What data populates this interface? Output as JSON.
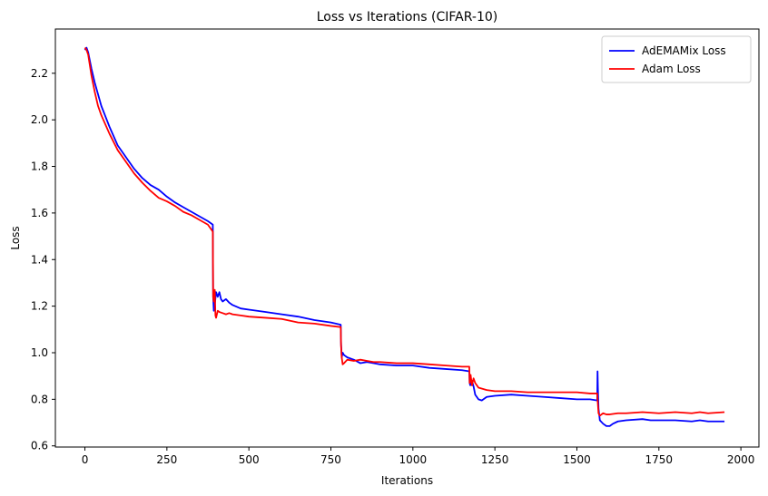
{
  "chart_data": {
    "type": "line",
    "title": "Loss vs Iterations (CIFAR-10)",
    "xlabel": "Iterations",
    "ylabel": "Loss",
    "xlim": [
      -90,
      2055
    ],
    "ylim": [
      0.595,
      2.39
    ],
    "xticks": [
      0,
      250,
      500,
      750,
      1000,
      1250,
      1500,
      1750,
      2000
    ],
    "yticks": [
      0.6,
      0.8,
      1.0,
      1.2,
      1.4,
      1.6,
      1.8,
      2.0,
      2.2
    ],
    "ytick_labels": [
      "0.6",
      "0.8",
      "1.0",
      "1.2",
      "1.4",
      "1.6",
      "1.8",
      "2.0",
      "2.2"
    ],
    "grid": false,
    "legend_position": "top-right",
    "series": [
      {
        "name": "AdEMAMix Loss",
        "color": "#0000ff",
        "points": [
          [
            0,
            2.3
          ],
          [
            5,
            2.31
          ],
          [
            10,
            2.29
          ],
          [
            20,
            2.22
          ],
          [
            30,
            2.16
          ],
          [
            40,
            2.11
          ],
          [
            50,
            2.06
          ],
          [
            75,
            1.97
          ],
          [
            100,
            1.89
          ],
          [
            125,
            1.84
          ],
          [
            150,
            1.79
          ],
          [
            175,
            1.75
          ],
          [
            200,
            1.72
          ],
          [
            225,
            1.7
          ],
          [
            250,
            1.67
          ],
          [
            275,
            1.645
          ],
          [
            300,
            1.625
          ],
          [
            325,
            1.605
          ],
          [
            350,
            1.585
          ],
          [
            375,
            1.565
          ],
          [
            390,
            1.55
          ],
          [
            391,
            1.24
          ],
          [
            393,
            1.18
          ],
          [
            397,
            1.22
          ],
          [
            400,
            1.26
          ],
          [
            405,
            1.24
          ],
          [
            410,
            1.26
          ],
          [
            415,
            1.23
          ],
          [
            420,
            1.22
          ],
          [
            430,
            1.23
          ],
          [
            440,
            1.215
          ],
          [
            450,
            1.205
          ],
          [
            475,
            1.19
          ],
          [
            500,
            1.185
          ],
          [
            550,
            1.175
          ],
          [
            600,
            1.165
          ],
          [
            650,
            1.155
          ],
          [
            700,
            1.14
          ],
          [
            750,
            1.13
          ],
          [
            780,
            1.12
          ],
          [
            781,
            1.04
          ],
          [
            783,
            0.98
          ],
          [
            786,
            1.0
          ],
          [
            790,
            0.99
          ],
          [
            800,
            0.98
          ],
          [
            820,
            0.97
          ],
          [
            840,
            0.955
          ],
          [
            860,
            0.96
          ],
          [
            880,
            0.955
          ],
          [
            900,
            0.95
          ],
          [
            950,
            0.945
          ],
          [
            1000,
            0.945
          ],
          [
            1050,
            0.935
          ],
          [
            1100,
            0.93
          ],
          [
            1150,
            0.925
          ],
          [
            1172,
            0.92
          ],
          [
            1173,
            0.87
          ],
          [
            1175,
            0.86
          ],
          [
            1180,
            0.88
          ],
          [
            1185,
            0.855
          ],
          [
            1190,
            0.82
          ],
          [
            1200,
            0.8
          ],
          [
            1210,
            0.795
          ],
          [
            1225,
            0.81
          ],
          [
            1250,
            0.815
          ],
          [
            1300,
            0.82
          ],
          [
            1350,
            0.815
          ],
          [
            1400,
            0.81
          ],
          [
            1450,
            0.805
          ],
          [
            1500,
            0.8
          ],
          [
            1540,
            0.8
          ],
          [
            1562,
            0.795
          ],
          [
            1563,
            0.92
          ],
          [
            1564,
            0.85
          ],
          [
            1566,
            0.76
          ],
          [
            1570,
            0.71
          ],
          [
            1580,
            0.695
          ],
          [
            1590,
            0.685
          ],
          [
            1600,
            0.685
          ],
          [
            1610,
            0.695
          ],
          [
            1625,
            0.705
          ],
          [
            1650,
            0.71
          ],
          [
            1700,
            0.715
          ],
          [
            1725,
            0.71
          ],
          [
            1750,
            0.71
          ],
          [
            1800,
            0.71
          ],
          [
            1850,
            0.705
          ],
          [
            1875,
            0.71
          ],
          [
            1900,
            0.705
          ],
          [
            1950,
            0.705
          ]
        ]
      },
      {
        "name": "Adam Loss",
        "color": "#ff0000",
        "points": [
          [
            0,
            2.31
          ],
          [
            5,
            2.3
          ],
          [
            10,
            2.28
          ],
          [
            20,
            2.19
          ],
          [
            30,
            2.12
          ],
          [
            40,
            2.06
          ],
          [
            50,
            2.02
          ],
          [
            75,
            1.94
          ],
          [
            100,
            1.87
          ],
          [
            125,
            1.82
          ],
          [
            150,
            1.77
          ],
          [
            175,
            1.73
          ],
          [
            200,
            1.695
          ],
          [
            225,
            1.665
          ],
          [
            250,
            1.65
          ],
          [
            275,
            1.63
          ],
          [
            300,
            1.605
          ],
          [
            325,
            1.59
          ],
          [
            350,
            1.57
          ],
          [
            375,
            1.55
          ],
          [
            390,
            1.52
          ],
          [
            391,
            1.24
          ],
          [
            393,
            1.22
          ],
          [
            396,
            1.27
          ],
          [
            398,
            1.16
          ],
          [
            400,
            1.15
          ],
          [
            405,
            1.18
          ],
          [
            410,
            1.175
          ],
          [
            420,
            1.17
          ],
          [
            430,
            1.165
          ],
          [
            440,
            1.17
          ],
          [
            450,
            1.165
          ],
          [
            475,
            1.16
          ],
          [
            500,
            1.155
          ],
          [
            550,
            1.15
          ],
          [
            600,
            1.145
          ],
          [
            650,
            1.13
          ],
          [
            700,
            1.125
          ],
          [
            750,
            1.115
          ],
          [
            780,
            1.11
          ],
          [
            781,
            1.03
          ],
          [
            783,
            0.98
          ],
          [
            786,
            0.95
          ],
          [
            790,
            0.955
          ],
          [
            800,
            0.97
          ],
          [
            820,
            0.965
          ],
          [
            840,
            0.97
          ],
          [
            860,
            0.965
          ],
          [
            880,
            0.96
          ],
          [
            900,
            0.96
          ],
          [
            950,
            0.955
          ],
          [
            1000,
            0.955
          ],
          [
            1050,
            0.95
          ],
          [
            1100,
            0.945
          ],
          [
            1150,
            0.94
          ],
          [
            1172,
            0.94
          ],
          [
            1173,
            0.87
          ],
          [
            1176,
            0.905
          ],
          [
            1180,
            0.86
          ],
          [
            1185,
            0.89
          ],
          [
            1190,
            0.87
          ],
          [
            1200,
            0.85
          ],
          [
            1225,
            0.84
          ],
          [
            1250,
            0.835
          ],
          [
            1300,
            0.835
          ],
          [
            1350,
            0.83
          ],
          [
            1400,
            0.83
          ],
          [
            1450,
            0.83
          ],
          [
            1500,
            0.83
          ],
          [
            1540,
            0.825
          ],
          [
            1562,
            0.825
          ],
          [
            1563,
            0.8
          ],
          [
            1566,
            0.74
          ],
          [
            1570,
            0.73
          ],
          [
            1580,
            0.74
          ],
          [
            1590,
            0.735
          ],
          [
            1600,
            0.735
          ],
          [
            1625,
            0.74
          ],
          [
            1650,
            0.74
          ],
          [
            1700,
            0.745
          ],
          [
            1750,
            0.74
          ],
          [
            1800,
            0.745
          ],
          [
            1850,
            0.74
          ],
          [
            1875,
            0.745
          ],
          [
            1900,
            0.74
          ],
          [
            1950,
            0.745
          ]
        ]
      }
    ]
  }
}
